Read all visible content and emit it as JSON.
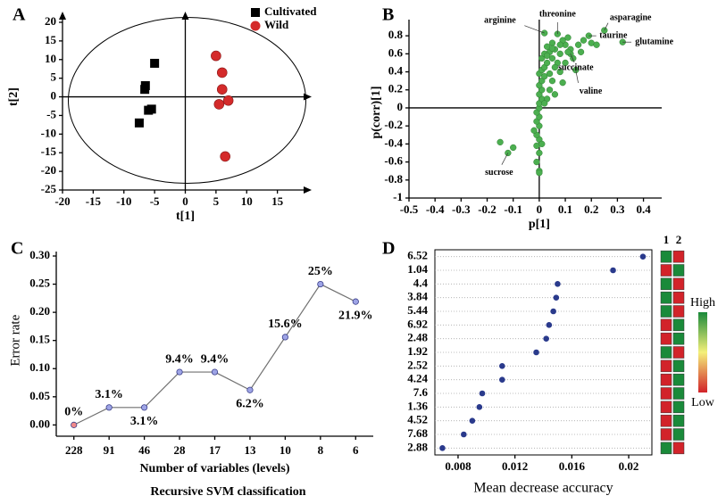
{
  "chart_data": [
    {
      "type": "scatter",
      "panel": "A",
      "xlabel": "t[1]",
      "ylabel": "t[2]",
      "xlim": [
        -20,
        20
      ],
      "ylim": [
        -25,
        20
      ],
      "xticks": [
        -20,
        -15,
        -10,
        -5,
        0,
        5,
        10,
        15
      ],
      "yticks": [
        -25,
        -20,
        -15,
        -10,
        -5,
        0,
        5,
        10,
        15,
        20
      ],
      "legend": "top-right",
      "series": [
        {
          "name": "Cultivated",
          "color": "#000000",
          "marker": "square",
          "x": [
            -5,
            -6.5,
            -6.6,
            -5.5,
            -6,
            -7.5
          ],
          "values": [
            9,
            3,
            2,
            -3.3,
            -3.6,
            -7
          ]
        },
        {
          "name": "Wild",
          "color": "#d42a2a",
          "marker": "circle",
          "x": [
            5,
            6,
            6,
            7,
            5.5,
            6.5
          ],
          "values": [
            11,
            6.5,
            2,
            -1,
            -2,
            -16
          ]
        }
      ]
    },
    {
      "type": "scatter",
      "panel": "B",
      "xlabel": "p[1]",
      "ylabel": "p(corr)[1]",
      "xlim": [
        -0.5,
        0.47
      ],
      "ylim": [
        -1,
        0.92
      ],
      "xticks": [
        -0.5,
        -0.4,
        -0.3,
        -0.2,
        -0.1,
        0,
        0.1,
        0.2,
        0.3,
        0.4
      ],
      "yticks": [
        -1,
        -0.8,
        -0.6,
        -0.4,
        -0.2,
        0,
        0.2,
        0.4,
        0.6,
        0.8
      ],
      "color": "#4caf50",
      "x": [
        0,
        0,
        -0.01,
        0,
        -0.01,
        0,
        -0.01,
        -0.02,
        0,
        -0.01,
        0,
        -0.01,
        0,
        0,
        0.01,
        0,
        0.01,
        0,
        0.01,
        0.02,
        0,
        0.01,
        0.02,
        0.03,
        0.01,
        0.02,
        0.04,
        0.05,
        0.06,
        0.03,
        0.08,
        0.1,
        0.12,
        0.15,
        0.09,
        0.11,
        0.05,
        0.07,
        0.06,
        0.1,
        0.13,
        0.08,
        0.14,
        0.12,
        0.17,
        0.19,
        0.25,
        0.32,
        0.07,
        0.02,
        0.09,
        0.05,
        0.04,
        0.03,
        0.06,
        -0.15,
        -0.12,
        -0.1,
        0.02,
        0.04,
        0.16,
        0.2,
        0.22,
        0.01,
        0.03,
        0.05,
        0.08,
        0.11
      ],
      "values": [
        -0.7,
        -0.72,
        -0.6,
        -0.5,
        -0.42,
        -0.35,
        -0.3,
        -0.25,
        -0.2,
        -0.15,
        -0.1,
        -0.05,
        0,
        0.05,
        0.1,
        0.15,
        0.2,
        0.25,
        0.3,
        0.35,
        0.38,
        0.42,
        0.45,
        0.5,
        0.55,
        0.6,
        0.62,
        0.55,
        0.65,
        0.68,
        0.6,
        0.7,
        0.65,
        0.7,
        0.75,
        0.78,
        0.72,
        0.5,
        0.45,
        0.5,
        0.55,
        0.4,
        0.42,
        0.6,
        0.75,
        0.8,
        0.86,
        0.73,
        0.82,
        0.83,
        0.28,
        0.3,
        0.2,
        0.1,
        0.15,
        -0.38,
        -0.5,
        -0.44,
        0.05,
        0.38,
        0.62,
        0.72,
        0.7,
        -0.4,
        0.58,
        0.66,
        0.7,
        0.62
      ],
      "annotations": [
        {
          "text": "arginine",
          "x": 0.02,
          "y": 0.83
        },
        {
          "text": "threonine",
          "x": 0.07,
          "y": 0.82
        },
        {
          "text": "asparagine",
          "x": 0.25,
          "y": 0.86
        },
        {
          "text": "taurine",
          "x": 0.19,
          "y": 0.8
        },
        {
          "text": "glutamine",
          "x": 0.32,
          "y": 0.73
        },
        {
          "text": "succinate",
          "x": 0.12,
          "y": 0.6
        },
        {
          "text": "valine",
          "x": 0.14,
          "y": 0.42
        },
        {
          "text": "sucrose",
          "x": -0.12,
          "y": -0.5
        }
      ]
    },
    {
      "type": "line",
      "panel": "C",
      "xlabel": "Number of variables (levels)",
      "ylabel": "Error rate",
      "caption": "Recursive SVM classification",
      "categories": [
        "228",
        "91",
        "46",
        "28",
        "17",
        "13",
        "10",
        "8",
        "6"
      ],
      "values": [
        0,
        0.031,
        0.031,
        0.094,
        0.094,
        0.062,
        0.156,
        0.25,
        0.219
      ],
      "value_labels": [
        "0%",
        "3.1%",
        "3.1%",
        "9.4%",
        "9.4%",
        "6.2%",
        "15.6%",
        "25%",
        "21.9%"
      ],
      "color": "#707070",
      "marker_colors": [
        "#f08a8a",
        "#9ea4e6",
        "#9ea4e6",
        "#9ea4e6",
        "#9ea4e6",
        "#9ea4e6",
        "#9ea4e6",
        "#9ea4e6",
        "#9ea4e6"
      ],
      "ylim": [
        -0.02,
        0.3
      ],
      "yticks": [
        {
          "value": 0,
          "label": "0.00"
        },
        {
          "value": 0.05,
          "label": "0.05"
        },
        {
          "value": 0.1,
          "label": "0.10"
        },
        {
          "value": 0.15,
          "label": "0.15"
        },
        {
          "value": 0.2,
          "label": "0.20"
        },
        {
          "value": 0.25,
          "label": "0.25"
        },
        {
          "value": 0.3,
          "label": "0.30"
        }
      ]
    },
    {
      "type": "dot",
      "panel": "D",
      "xlabel": "Mean decrease accuracy",
      "categories": [
        "6.52",
        "1.04",
        "4.4",
        "3.84",
        "5.44",
        "6.92",
        "2.48",
        "1.92",
        "2.52",
        "4.24",
        "7.6",
        "1.36",
        "4.52",
        "7.68",
        "2.88"
      ],
      "values": [
        0.021,
        0.0189,
        0.015,
        0.0149,
        0.0147,
        0.0144,
        0.0142,
        0.0135,
        0.0111,
        0.0111,
        0.0097,
        0.0095,
        0.009,
        0.0084,
        0.0069
      ],
      "color": "#2a3a8c",
      "grid": true,
      "xlim": [
        0.00637,
        0.02163
      ],
      "xticks": [
        0.008,
        0.012,
        0.016,
        0.02
      ],
      "heatmap": {
        "columns": [
          "1",
          "2"
        ],
        "high": "High",
        "low": "Low",
        "colors": [
          [
            "#1a8a3a",
            "#d2232a"
          ],
          [
            "#d2232a",
            "#1a8a3a"
          ],
          [
            "#1a8a3a",
            "#d2232a"
          ],
          [
            "#1a8a3a",
            "#d2232a"
          ],
          [
            "#1a8a3a",
            "#d2232a"
          ],
          [
            "#d2232a",
            "#1a8a3a"
          ],
          [
            "#d2232a",
            "#1a8a3a"
          ],
          [
            "#1a8a3a",
            "#d2232a"
          ],
          [
            "#d2232a",
            "#1a8a3a"
          ],
          [
            "#d2232a",
            "#1a8a3a"
          ],
          [
            "#d2232a",
            "#1a8a3a"
          ],
          [
            "#d2232a",
            "#1a8a3a"
          ],
          [
            "#d2232a",
            "#1a8a3a"
          ],
          [
            "#d2232a",
            "#1a8a3a"
          ],
          [
            "#1a8a3a",
            "#d2232a"
          ]
        ]
      }
    }
  ]
}
